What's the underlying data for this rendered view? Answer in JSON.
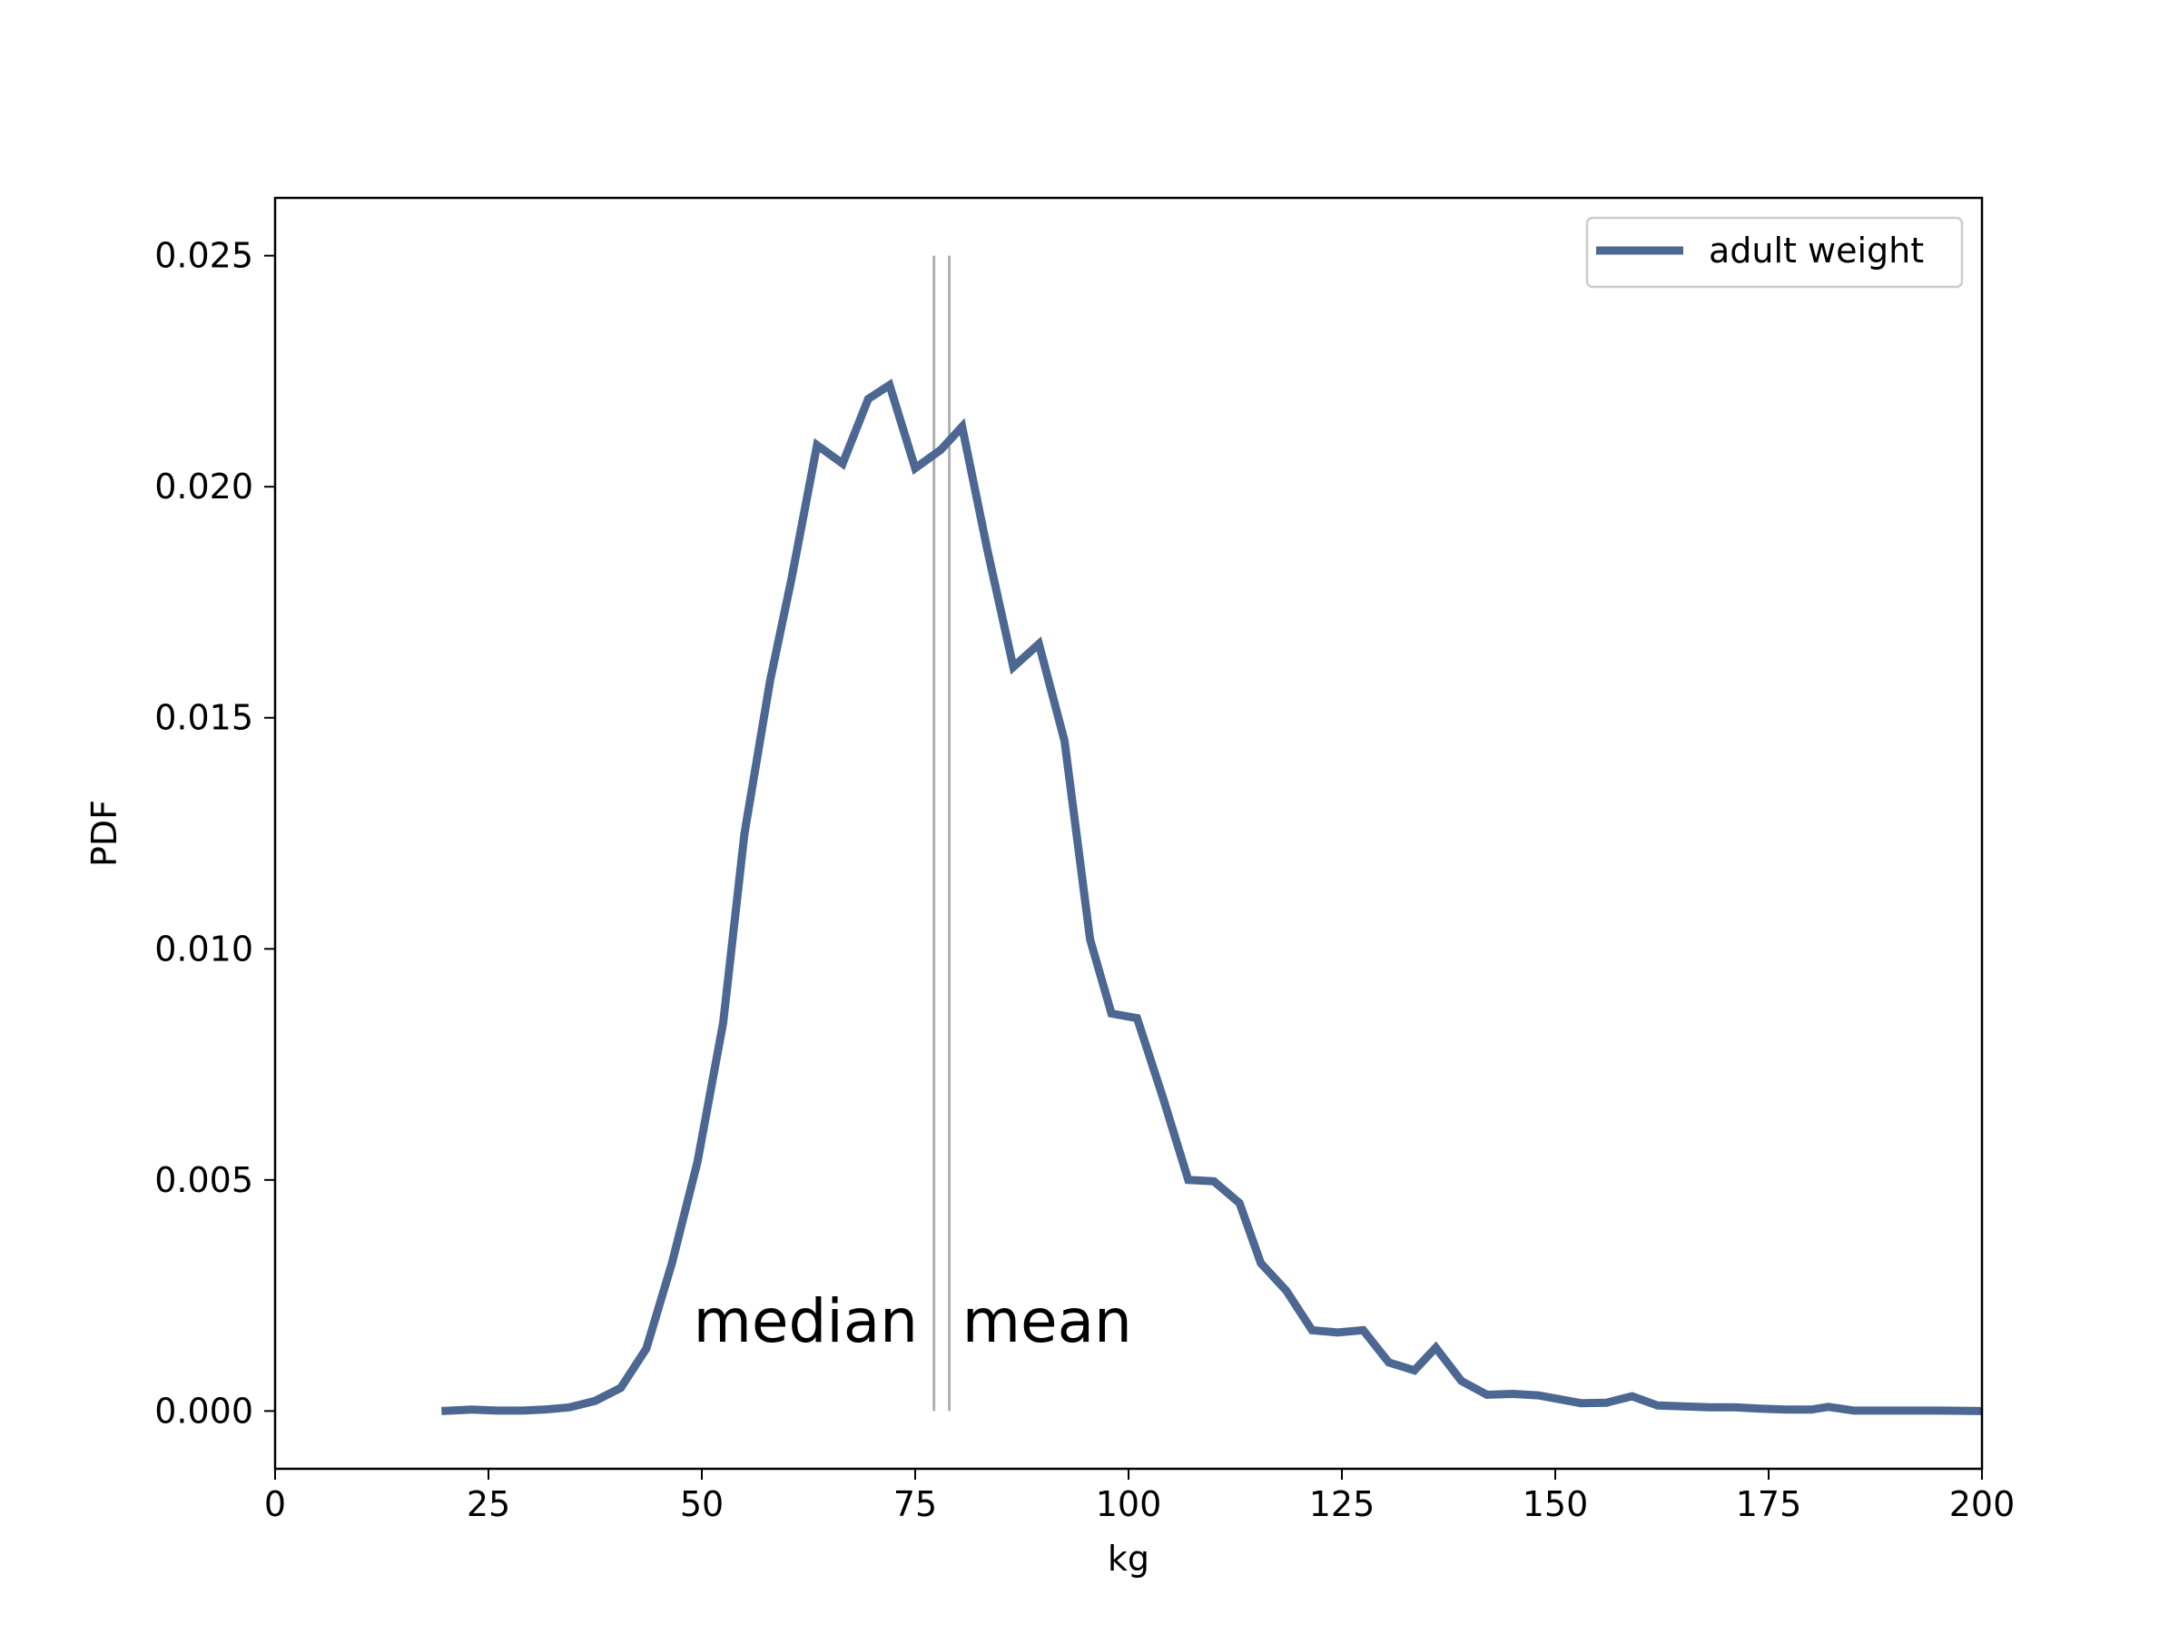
{
  "chart_data": {
    "type": "line",
    "xlabel": "kg",
    "ylabel": "PDF",
    "xlim": [
      0,
      200
    ],
    "ylim": [
      -0.00125,
      0.02625
    ],
    "xticks": [
      0,
      25,
      50,
      75,
      100,
      125,
      150,
      175,
      200
    ],
    "yticks": [
      0.0,
      0.005,
      0.01,
      0.015,
      0.02,
      0.025
    ],
    "xtick_labels": [
      "0",
      "25",
      "50",
      "75",
      "100",
      "125",
      "150",
      "175",
      "200"
    ],
    "ytick_labels": [
      "0.000",
      "0.005",
      "0.010",
      "0.015",
      "0.020",
      "0.025"
    ],
    "grid": false,
    "legend": {
      "position": "top-right",
      "entries": [
        "adult weight"
      ]
    },
    "line_color": "#4c6791",
    "ref_line_color": "#b0b0b0",
    "series": [
      {
        "name": "adult weight",
        "x": [
          19.5,
          23,
          26,
          29,
          31.5,
          34.5,
          37.5,
          40.5,
          43.5,
          46.5,
          49.5,
          52.5,
          55,
          58,
          60.5,
          63.5,
          66.5,
          69.5,
          72,
          75,
          78,
          80.5,
          83.5,
          86.5,
          89.5,
          92.5,
          95.5,
          98,
          101,
          104,
          107,
          110,
          113,
          115.5,
          118.5,
          121.5,
          124.5,
          127.5,
          130.5,
          133.5,
          136,
          139,
          142,
          145,
          148,
          153,
          156,
          159,
          162,
          165,
          168,
          171,
          174,
          177,
          180,
          182,
          185,
          190,
          195,
          200
        ],
        "y": [
          0.0,
          3e-05,
          1e-05,
          1e-05,
          3e-05,
          8e-05,
          0.00022,
          0.0005,
          0.00135,
          0.0032,
          0.0054,
          0.0084,
          0.0125,
          0.0158,
          0.018,
          0.0209,
          0.0205,
          0.0219,
          0.0222,
          0.0204,
          0.0208,
          0.0213,
          0.0186,
          0.0161,
          0.0166,
          0.0145,
          0.0102,
          0.0086,
          0.0085,
          0.0068,
          0.005,
          0.00497,
          0.0045,
          0.0032,
          0.0026,
          0.00175,
          0.0017,
          0.00175,
          0.00105,
          0.00088,
          0.00137,
          0.00065,
          0.00035,
          0.00037,
          0.00034,
          0.00017,
          0.00018,
          0.00032,
          0.00012,
          0.0001,
          8e-05,
          8e-05,
          5e-05,
          3e-05,
          3e-05,
          9e-05,
          1e-05,
          1e-05,
          1e-05,
          0.0
        ]
      }
    ],
    "annotations": [
      {
        "label": "median",
        "x": 77.2,
        "y_range": [
          0.0,
          0.025
        ],
        "text_x": 49,
        "text_y": 0.0015,
        "align": "start"
      },
      {
        "label": "mean",
        "x": 79.0,
        "y_range": [
          0.0,
          0.025
        ],
        "text_x": 80.5,
        "text_y": 0.0015,
        "align": "start"
      }
    ]
  }
}
